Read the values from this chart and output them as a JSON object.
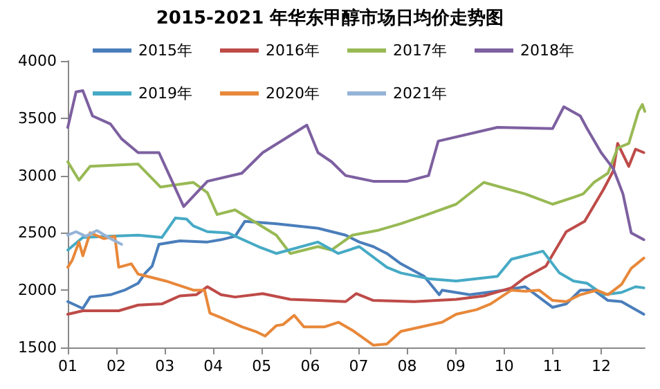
{
  "chart_data": {
    "type": "line",
    "title": "2015-2021 年华东甲醇市场日均价走势图",
    "xlim": [
      1,
      12.9
    ],
    "xticks": [
      {
        "value": 1,
        "label": "01"
      },
      {
        "value": 2,
        "label": "02"
      },
      {
        "value": 3,
        "label": "03"
      },
      {
        "value": 4,
        "label": "04"
      },
      {
        "value": 5,
        "label": "05"
      },
      {
        "value": 6,
        "label": "06"
      },
      {
        "value": 7,
        "label": "07"
      },
      {
        "value": 8,
        "label": "08"
      },
      {
        "value": 9,
        "label": "09"
      },
      {
        "value": 10,
        "label": "10"
      },
      {
        "value": 11,
        "label": "11"
      },
      {
        "value": 12,
        "label": "12"
      }
    ],
    "ylim": [
      1500,
      4000
    ],
    "yticks": [
      1500,
      2000,
      2500,
      3000,
      3500,
      4000
    ],
    "grid": false,
    "legend": "top",
    "marker": "none",
    "line_style": "solid",
    "series": [
      {
        "name": "2015年",
        "color": "#4a7ebb",
        "x": [
          1.0,
          1.31,
          1.46,
          1.88,
          2.17,
          2.45,
          2.6,
          2.74,
          2.88,
          3.31,
          3.88,
          4.16,
          4.45,
          4.65,
          5.3,
          6.16,
          6.73,
          7.01,
          7.3,
          7.58,
          7.87,
          8.35,
          8.66,
          8.72,
          9.29,
          10.0,
          10.43,
          11.0,
          11.28,
          11.57,
          11.85,
          12.14,
          12.42,
          12.88
        ],
        "values": [
          1900,
          1840,
          1940,
          1960,
          2000,
          2060,
          2150,
          2210,
          2400,
          2430,
          2420,
          2440,
          2470,
          2600,
          2580,
          2540,
          2480,
          2420,
          2380,
          2320,
          2230,
          2120,
          1960,
          2000,
          1960,
          2000,
          2030,
          1850,
          1880,
          2000,
          2000,
          1910,
          1900,
          1790
        ]
      },
      {
        "name": "2016年",
        "color": "#be4b48",
        "x": [
          1.0,
          1.31,
          2.05,
          2.45,
          2.94,
          3.31,
          3.65,
          3.88,
          4.16,
          4.45,
          5.02,
          5.59,
          6.16,
          6.73,
          6.95,
          7.3,
          8.15,
          9.01,
          9.58,
          10.15,
          10.43,
          10.86,
          11.28,
          11.66,
          12.05,
          12.25,
          12.34,
          12.57,
          12.71,
          12.88
        ],
        "values": [
          1790,
          1820,
          1820,
          1870,
          1880,
          1950,
          1960,
          2030,
          1960,
          1940,
          1970,
          1920,
          1910,
          1900,
          1970,
          1910,
          1900,
          1920,
          1950,
          2020,
          2110,
          2210,
          2510,
          2600,
          2880,
          3040,
          3280,
          3080,
          3230,
          3200
        ]
      },
      {
        "name": "2017年",
        "color": "#98b954",
        "x": [
          1.0,
          1.23,
          1.46,
          2.45,
          2.91,
          3.59,
          3.88,
          4.08,
          4.45,
          5.3,
          5.59,
          6.16,
          6.44,
          6.87,
          7.38,
          7.87,
          8.35,
          9.01,
          9.58,
          10.43,
          11.0,
          11.43,
          11.63,
          11.85,
          12.14,
          12.34,
          12.57,
          12.77,
          12.85,
          12.9
        ],
        "values": [
          3120,
          2960,
          3080,
          3100,
          2900,
          2940,
          2850,
          2660,
          2700,
          2480,
          2320,
          2380,
          2350,
          2480,
          2520,
          2580,
          2650,
          2750,
          2940,
          2840,
          2750,
          2810,
          2840,
          2940,
          3020,
          3240,
          3280,
          3560,
          3620,
          3560
        ]
      },
      {
        "name": "2018年",
        "color": "#7d60a0",
        "x": [
          1.0,
          1.17,
          1.31,
          1.51,
          1.88,
          2.11,
          2.45,
          2.88,
          3.39,
          3.88,
          4.59,
          5.02,
          5.93,
          6.16,
          6.44,
          6.73,
          7.3,
          8.0,
          8.44,
          8.52,
          8.64,
          9.86,
          11.0,
          11.23,
          11.57,
          11.71,
          12.0,
          12.25,
          12.45,
          12.62,
          12.88
        ],
        "values": [
          3420,
          3730,
          3740,
          3520,
          3450,
          3320,
          3200,
          3200,
          2730,
          2950,
          3020,
          3200,
          3440,
          3200,
          3120,
          3000,
          2950,
          2950,
          3000,
          3120,
          3300,
          3420,
          3410,
          3600,
          3520,
          3410,
          3200,
          3060,
          2840,
          2500,
          2440
        ]
      },
      {
        "name": "2019年",
        "color": "#46aac5",
        "x": [
          1.0,
          1.31,
          1.88,
          2.45,
          2.94,
          3.22,
          3.45,
          3.59,
          3.88,
          4.3,
          4.93,
          5.3,
          6.16,
          6.58,
          7.01,
          7.58,
          7.87,
          8.44,
          9.01,
          9.86,
          10.15,
          10.43,
          10.8,
          11.14,
          11.43,
          11.71,
          12.05,
          12.42,
          12.71,
          12.88
        ],
        "values": [
          2350,
          2460,
          2470,
          2480,
          2460,
          2630,
          2620,
          2560,
          2510,
          2500,
          2380,
          2320,
          2420,
          2320,
          2380,
          2200,
          2150,
          2100,
          2080,
          2120,
          2270,
          2300,
          2340,
          2150,
          2080,
          2060,
          1960,
          1980,
          2030,
          2020
        ]
      },
      {
        "name": "2020年",
        "color": "#e8883a",
        "x": [
          1.0,
          1.09,
          1.23,
          1.31,
          1.46,
          1.74,
          1.97,
          2.05,
          2.31,
          2.45,
          2.74,
          3.02,
          3.31,
          3.59,
          3.82,
          3.93,
          4.16,
          4.59,
          4.87,
          5.07,
          5.3,
          5.44,
          5.67,
          5.87,
          6.3,
          6.58,
          6.87,
          7.3,
          7.58,
          7.87,
          8.72,
          9.01,
          9.43,
          9.72,
          10.15,
          10.43,
          10.72,
          11.0,
          11.28,
          11.57,
          11.91,
          12.14,
          12.42,
          12.62,
          12.88
        ],
        "values": [
          2200,
          2260,
          2420,
          2300,
          2500,
          2450,
          2470,
          2200,
          2230,
          2140,
          2110,
          2080,
          2040,
          2000,
          2000,
          1800,
          1760,
          1680,
          1640,
          1600,
          1690,
          1700,
          1780,
          1680,
          1680,
          1720,
          1650,
          1520,
          1530,
          1640,
          1720,
          1790,
          1830,
          1880,
          2000,
          1990,
          2000,
          1910,
          1900,
          1960,
          2000,
          1960,
          2050,
          2190,
          2280
        ]
      },
      {
        "name": "2021年",
        "color": "#95b3d7",
        "x": [
          1.0,
          1.17,
          1.37,
          1.6,
          1.88,
          2.11
        ],
        "values": [
          2480,
          2510,
          2470,
          2520,
          2450,
          2400
        ]
      }
    ]
  }
}
